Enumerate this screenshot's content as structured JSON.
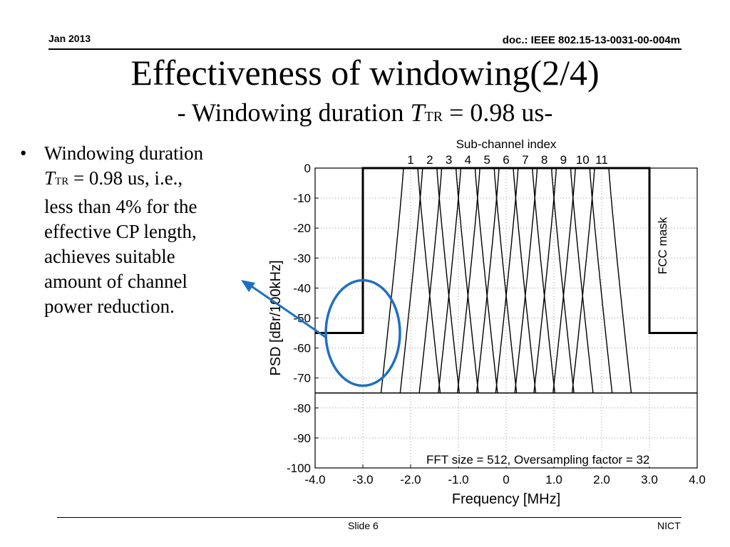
{
  "header": {
    "date": "Jan 2013",
    "doc": "doc.: IEEE 802.15-13-0031-00-004m"
  },
  "title": {
    "main": "Effectiveness of windowing(2/4)",
    "sub_prefix": "- Windowing duration ",
    "sub_T": "T",
    "sub_TR": "TR",
    "sub_suffix": " = 0.98 us-"
  },
  "bullet": {
    "lines": [
      "Windowing duration",
      "= 0.98 us, i.e.,",
      "less than 4% for the",
      "effective CP length,",
      "achieves suitable",
      "amount of channel",
      "power reduction."
    ],
    "T": "T",
    "TR": "TR"
  },
  "footer": {
    "slide": "Slide 6",
    "org": "NICT"
  },
  "chart_data": {
    "type": "line",
    "top_axis_label": "Sub-channel index",
    "top_ticks": [
      "1",
      "2",
      "3",
      "4",
      "5",
      "6",
      "7",
      "8",
      "9",
      "10",
      "11"
    ],
    "xlabel": "Frequency [MHz]",
    "ylabel": "PSD [dBr/100kHz]",
    "xlim": [
      -4.0,
      4.0
    ],
    "ylim": [
      -100,
      0
    ],
    "x_ticks": [
      "-4.0",
      "-3.0",
      "-2.0",
      "-1.0",
      "0",
      "1.0",
      "2.0",
      "3.0",
      "4.0"
    ],
    "y_ticks": [
      "0",
      "-10",
      "-20",
      "-30",
      "-40",
      "-50",
      "-60",
      "-70",
      "-80",
      "-90",
      "-100"
    ],
    "grid": true,
    "annotation": "FFT size = 512, Oversampling factor = 32",
    "mask_label": "FCC mask",
    "fcc_mask": {
      "x": [
        -4.0,
        -3.0,
        -3.0,
        3.0,
        3.0,
        4.0
      ],
      "y": [
        -55,
        -55,
        0,
        0,
        -55,
        -55
      ]
    },
    "subchannel_centers_mhz": [
      -2.0,
      -1.6,
      -1.2,
      -0.8,
      -0.4,
      0.0,
      0.4,
      0.8,
      1.2,
      1.6,
      2.0
    ],
    "subchannel_half_width_mhz": 0.15,
    "highlight": {
      "center_x": -3.0,
      "center_y": -55,
      "note": ""
    },
    "colors": {
      "highlight": "#1f6fc1",
      "line": "#000000"
    }
  }
}
